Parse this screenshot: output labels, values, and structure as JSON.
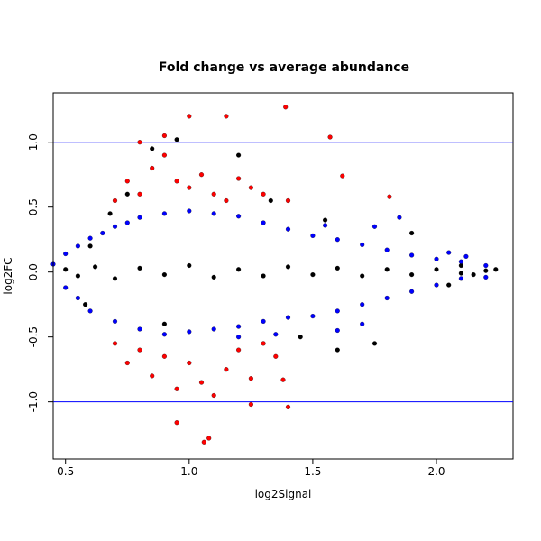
{
  "chart_data": {
    "type": "scatter",
    "title": "Fold change vs average abundance",
    "xlabel": "log2Signal",
    "ylabel": "log2FC",
    "xlim": [
      0.45,
      2.31
    ],
    "ylim": [
      -1.44,
      1.38
    ],
    "x_ticks": [
      "0.5",
      "1.0",
      "1.5",
      "2.0"
    ],
    "y_ticks": [
      "-1.0",
      "-0.5",
      "0.0",
      "0.5",
      "1.0"
    ],
    "reference_lines": [
      1.0,
      -1.0
    ],
    "reference_line_color": "#0000ff",
    "grid": false,
    "legend": "none",
    "series_colors": {
      "not_significant": "#000000",
      "significant": "#0000ff",
      "large_change": "#ff0000"
    },
    "series": [
      {
        "color_key": "not_significant",
        "points": [
          [
            0.5,
            0.02
          ],
          [
            0.55,
            -0.03
          ],
          [
            0.62,
            0.04
          ],
          [
            0.7,
            -0.05
          ],
          [
            0.8,
            0.03
          ],
          [
            0.9,
            -0.02
          ],
          [
            1.0,
            0.05
          ],
          [
            1.1,
            -0.04
          ],
          [
            1.2,
            0.02
          ],
          [
            1.3,
            -0.03
          ],
          [
            1.4,
            0.04
          ],
          [
            1.5,
            -0.02
          ],
          [
            1.6,
            0.03
          ],
          [
            1.7,
            -0.03
          ],
          [
            1.8,
            0.02
          ],
          [
            1.9,
            -0.02
          ],
          [
            2.0,
            0.02
          ],
          [
            2.1,
            -0.01
          ],
          [
            2.2,
            0.01
          ],
          [
            2.24,
            0.02
          ],
          [
            0.6,
            0.2
          ],
          [
            0.68,
            0.45
          ],
          [
            0.75,
            0.6
          ],
          [
            0.85,
            0.95
          ],
          [
            0.95,
            1.02
          ],
          [
            1.2,
            0.9
          ],
          [
            1.33,
            0.55
          ],
          [
            1.55,
            0.4
          ],
          [
            1.9,
            0.3
          ],
          [
            0.58,
            -0.25
          ],
          [
            0.9,
            -0.4
          ],
          [
            1.6,
            -0.6
          ],
          [
            1.75,
            -0.55
          ],
          [
            2.05,
            -0.1
          ],
          [
            1.45,
            -0.5
          ],
          [
            2.1,
            0.05
          ],
          [
            2.15,
            -0.02
          ]
        ]
      },
      {
        "color_key": "significant",
        "points": [
          [
            0.45,
            0.06
          ],
          [
            0.5,
            0.14
          ],
          [
            0.55,
            0.2
          ],
          [
            0.6,
            0.26
          ],
          [
            0.65,
            0.3
          ],
          [
            0.7,
            0.35
          ],
          [
            0.75,
            0.38
          ],
          [
            0.8,
            0.42
          ],
          [
            0.9,
            0.45
          ],
          [
            1.0,
            0.47
          ],
          [
            1.1,
            0.45
          ],
          [
            1.2,
            0.43
          ],
          [
            1.3,
            0.38
          ],
          [
            1.4,
            0.33
          ],
          [
            1.5,
            0.28
          ],
          [
            1.6,
            0.25
          ],
          [
            1.7,
            0.21
          ],
          [
            1.8,
            0.17
          ],
          [
            1.9,
            0.13
          ],
          [
            2.0,
            0.1
          ],
          [
            2.1,
            0.08
          ],
          [
            2.2,
            0.05
          ],
          [
            0.5,
            -0.12
          ],
          [
            0.55,
            -0.2
          ],
          [
            0.6,
            -0.3
          ],
          [
            0.7,
            -0.38
          ],
          [
            0.8,
            -0.44
          ],
          [
            0.9,
            -0.48
          ],
          [
            1.0,
            -0.46
          ],
          [
            1.1,
            -0.44
          ],
          [
            1.2,
            -0.42
          ],
          [
            1.3,
            -0.38
          ],
          [
            1.4,
            -0.35
          ],
          [
            1.5,
            -0.34
          ],
          [
            1.6,
            -0.3
          ],
          [
            1.7,
            -0.25
          ],
          [
            1.8,
            -0.2
          ],
          [
            1.9,
            -0.15
          ],
          [
            2.0,
            -0.1
          ],
          [
            2.1,
            -0.05
          ],
          [
            1.55,
            0.36
          ],
          [
            1.75,
            0.35
          ],
          [
            1.85,
            0.42
          ],
          [
            1.2,
            -0.5
          ],
          [
            1.35,
            -0.48
          ],
          [
            1.6,
            -0.45
          ],
          [
            1.7,
            -0.4
          ],
          [
            2.05,
            0.15
          ],
          [
            2.12,
            0.12
          ],
          [
            2.2,
            -0.04
          ]
        ]
      },
      {
        "color_key": "large_change",
        "points": [
          [
            0.7,
            0.55
          ],
          [
            0.75,
            0.7
          ],
          [
            0.8,
            0.6
          ],
          [
            0.85,
            0.8
          ],
          [
            0.9,
            0.9
          ],
          [
            0.95,
            0.7
          ],
          [
            1.0,
            0.65
          ],
          [
            1.05,
            0.75
          ],
          [
            1.1,
            0.6
          ],
          [
            1.15,
            0.55
          ],
          [
            1.2,
            0.72
          ],
          [
            1.25,
            0.65
          ],
          [
            1.3,
            0.6
          ],
          [
            1.4,
            0.55
          ],
          [
            1.0,
            1.2
          ],
          [
            1.15,
            1.2
          ],
          [
            1.39,
            1.27
          ],
          [
            1.57,
            1.04
          ],
          [
            1.62,
            0.74
          ],
          [
            1.81,
            0.58
          ],
          [
            0.9,
            1.05
          ],
          [
            0.8,
            1.0
          ],
          [
            0.7,
            -0.55
          ],
          [
            0.75,
            -0.7
          ],
          [
            0.8,
            -0.6
          ],
          [
            0.85,
            -0.8
          ],
          [
            0.9,
            -0.65
          ],
          [
            0.95,
            -0.9
          ],
          [
            1.0,
            -0.7
          ],
          [
            1.05,
            -0.85
          ],
          [
            1.1,
            -0.95
          ],
          [
            1.15,
            -0.75
          ],
          [
            1.2,
            -0.6
          ],
          [
            1.25,
            -0.82
          ],
          [
            1.3,
            -0.55
          ],
          [
            1.35,
            -0.65
          ],
          [
            1.38,
            -0.83
          ],
          [
            0.95,
            -1.16
          ],
          [
            1.06,
            -1.31
          ],
          [
            1.08,
            -1.28
          ],
          [
            1.25,
            -1.02
          ],
          [
            1.4,
            -1.04
          ]
        ]
      }
    ]
  }
}
